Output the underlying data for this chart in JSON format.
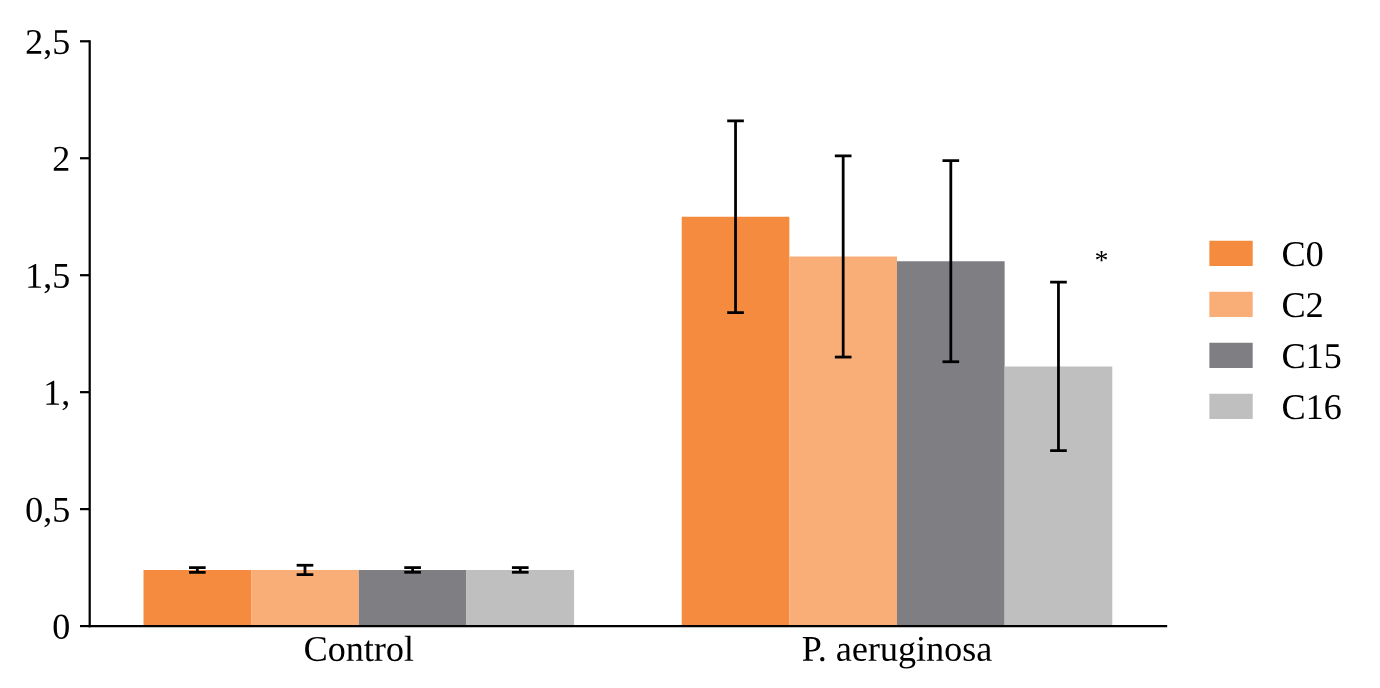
{
  "chart_data": {
    "type": "bar",
    "categories": [
      "Control",
      "P. aeruginosa"
    ],
    "series": [
      {
        "name": "C0",
        "color": "#f58b3f",
        "values": [
          0.24,
          1.75
        ],
        "errors": [
          0.01,
          [
            1.34,
            2.16
          ]
        ]
      },
      {
        "name": "C2",
        "color": "#f9ae78",
        "values": [
          0.24,
          1.58
        ],
        "errors": [
          0.02,
          [
            1.15,
            2.01
          ]
        ]
      },
      {
        "name": "C15",
        "color": "#7f7f83",
        "values": [
          0.24,
          1.56
        ],
        "errors": [
          0.01,
          [
            1.13,
            1.99
          ]
        ]
      },
      {
        "name": "C16",
        "color": "#bfbfbf",
        "values": [
          0.24,
          1.11
        ],
        "errors": [
          0.01,
          [
            0.75,
            1.47
          ]
        ]
      }
    ],
    "ylim": [
      0,
      2.5
    ],
    "yticks": [
      0,
      {
        "value": 0.5,
        "label": "0,5"
      },
      {
        "value": 1,
        "label": "1,"
      },
      {
        "value": 1.5,
        "label": "1,5"
      },
      2,
      {
        "value": 2.5,
        "label": "2,5"
      }
    ],
    "annotations": [
      "*"
    ],
    "legend": "right",
    "grid": false
  }
}
